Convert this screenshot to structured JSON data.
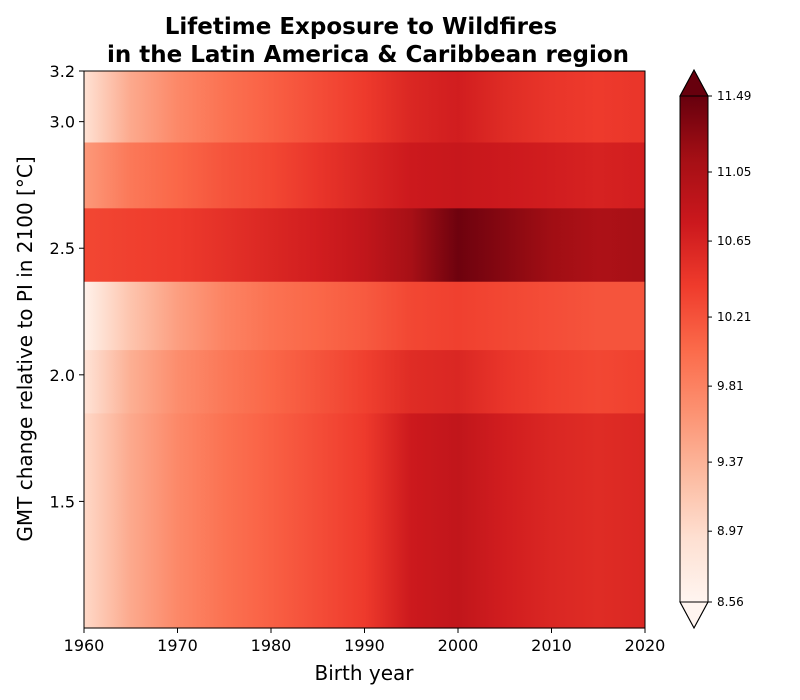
{
  "chart_data": {
    "type": "heatmap",
    "title": [
      "Lifetime Exposure to Wildfires",
      "in the Latin America & Caribbean region"
    ],
    "xlabel": "Birth year",
    "ylabel": "GMT change relative to PI in 2100 [°C]",
    "xlim": [
      1960,
      2020
    ],
    "ylim": [
      1.0,
      3.2
    ],
    "x_ticks": [
      1960,
      1970,
      1980,
      1990,
      2000,
      2010,
      2020
    ],
    "x_tick_labels": [
      "1960",
      "1970",
      "1980",
      "1990",
      "2000",
      "2010",
      "2020"
    ],
    "y_ticks": [
      1.5,
      2.0,
      2.5,
      3.0,
      3.2
    ],
    "y_tick_labels": [
      "1.5",
      "2.0",
      "2.5",
      "3.0",
      "3.2"
    ],
    "colormap": "Reds",
    "colormap_stops": [
      "#fff5f0",
      "#fee0d2",
      "#fcbba1",
      "#fc9272",
      "#fb6a4a",
      "#ef3b2c",
      "#cb181d",
      "#a50f15",
      "#67000d"
    ],
    "colorbar": {
      "min": 8.56,
      "max": 11.49,
      "extend": "both",
      "tick_values": [
        8.56,
        8.97,
        9.37,
        9.81,
        10.21,
        10.65,
        11.05,
        11.49
      ],
      "tick_labels": [
        "8.56",
        "8.97",
        "9.37",
        "9.81",
        "10.21",
        "10.65",
        "11.05",
        "11.49"
      ]
    },
    "birth_years": [
      1960,
      1965,
      1970,
      1975,
      1980,
      1985,
      1990,
      1995,
      2000,
      2005,
      2010,
      2015,
      2020
    ],
    "gmt_bands": [
      {
        "gmt_range": [
          1.0,
          1.85
        ],
        "values": [
          9.0,
          9.45,
          9.75,
          9.95,
          10.1,
          10.25,
          10.4,
          10.75,
          10.85,
          10.7,
          10.6,
          10.55,
          10.6
        ]
      },
      {
        "gmt_range": [
          1.85,
          2.1
        ],
        "values": [
          8.85,
          9.4,
          9.7,
          9.9,
          10.05,
          10.2,
          10.35,
          10.55,
          10.6,
          10.45,
          10.35,
          10.3,
          10.35
        ]
      },
      {
        "gmt_range": [
          2.1,
          2.37
        ],
        "values": [
          8.62,
          9.2,
          9.55,
          9.8,
          9.95,
          10.05,
          10.15,
          10.3,
          10.35,
          10.3,
          10.25,
          10.2,
          10.2
        ]
      },
      {
        "gmt_range": [
          2.37,
          2.66
        ],
        "values": [
          10.3,
          10.35,
          10.4,
          10.5,
          10.6,
          10.7,
          10.85,
          11.1,
          11.45,
          11.3,
          11.15,
          11.05,
          11.1
        ]
      },
      {
        "gmt_range": [
          2.66,
          2.92
        ],
        "values": [
          9.6,
          9.9,
          10.05,
          10.2,
          10.3,
          10.45,
          10.6,
          10.75,
          10.8,
          10.75,
          10.7,
          10.65,
          10.7
        ]
      },
      {
        "gmt_range": [
          2.92,
          3.2
        ],
        "values": [
          8.9,
          9.45,
          9.75,
          9.95,
          10.1,
          10.25,
          10.4,
          10.6,
          10.7,
          10.55,
          10.45,
          10.4,
          10.45
        ]
      }
    ]
  }
}
